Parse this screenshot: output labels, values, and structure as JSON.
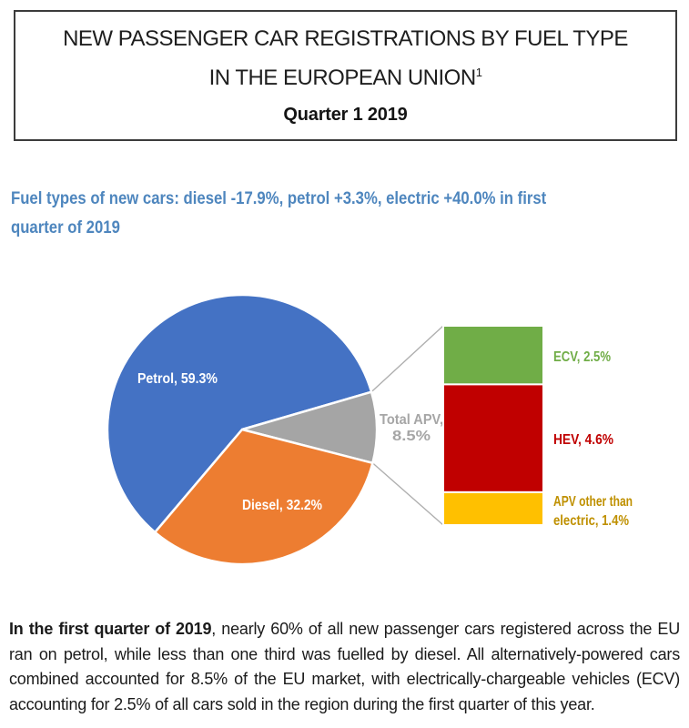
{
  "header": {
    "title_line1": "NEW PASSENGER CAR REGISTRATIONS BY FUEL TYPE",
    "title_line2": "IN THE EUROPEAN UNION",
    "title_superscript": "1",
    "period": "Quarter 1 2019"
  },
  "highlight": {
    "line1": "Fuel types of new cars: diesel -17.9%, petrol +3.3%, electric +40.0% in first",
    "line2": "quarter of 2019",
    "color": "#4E86BE"
  },
  "chart_data": {
    "type": "pie",
    "subtype": "bar-of-pie",
    "title": "",
    "legend_position": "none",
    "pie": {
      "start_angle_deg": 220.3,
      "slices": [
        {
          "name": "Petrol",
          "value": 59.3,
          "color": "#4472C4",
          "label_lines": [
            "Petrol, 59.3%"
          ],
          "label_color": "#FFFFFF"
        },
        {
          "name": "Total APV",
          "value": 8.5,
          "color": "#A5A5A5",
          "label_lines": [
            "Total APV,",
            "8.5%"
          ],
          "label_color": "#A6A6A6"
        },
        {
          "name": "Diesel",
          "value": 32.2,
          "color": "#ED7D31",
          "label_lines": [
            "Diesel, 32.2%"
          ],
          "label_color": "#FFFFFF"
        }
      ]
    },
    "bar": {
      "represents": "Total APV, 8.5%",
      "segments": [
        {
          "name": "ECV",
          "value": 2.5,
          "color": "#70AD47",
          "label_lines": [
            "ECV, 2.5%"
          ],
          "label_color": "#70AD47"
        },
        {
          "name": "HEV",
          "value": 4.6,
          "color": "#C00000",
          "label_lines": [
            "HEV, 4.6%"
          ],
          "label_color": "#C00000"
        },
        {
          "name": "APV other than electric",
          "value": 1.4,
          "color": "#FFC000",
          "label_lines": [
            "APV other than",
            "electric, 1.4%"
          ],
          "label_color": "#BF9000"
        }
      ]
    },
    "connector_color": "#AFAFAF"
  },
  "footer": {
    "bold": "In the first quarter of 2019",
    "rest": ", nearly 60% of all new passenger cars registered across the EU ran on petrol, while less than one third was fuelled by diesel. All alternatively-powered cars combined accounted for 8.5% of the EU market, with electrically-chargeable vehicles (ECV) accounting for 2.5% of all cars sold in the region during the first quarter of this year."
  }
}
